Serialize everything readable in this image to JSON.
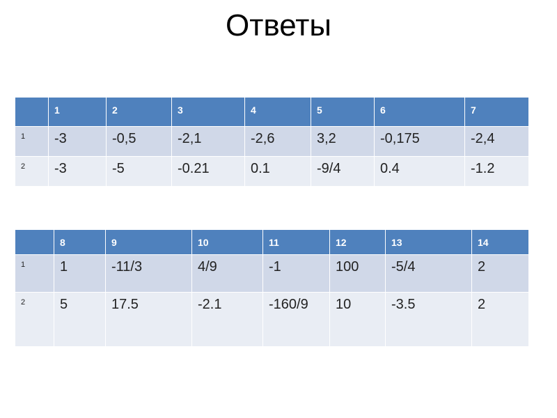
{
  "title": "Ответы",
  "tables": [
    {
      "header": [
        "1",
        "2",
        "3",
        "4",
        "5",
        "6",
        "7"
      ],
      "rows": [
        {
          "label": "1",
          "cells": [
            "-3",
            "-0,5",
            "-2,1",
            "-2,6",
            "3,2",
            "-0,175",
            "-2,4"
          ]
        },
        {
          "label": "2",
          "cells": [
            "-3",
            "-5",
            "-0.21",
            "0.1",
            "-9/4",
            "0.4",
            "-1.2"
          ]
        }
      ]
    },
    {
      "header": [
        "8",
        "9",
        "10",
        "11",
        "12",
        "13",
        "14"
      ],
      "rows": [
        {
          "label": "1",
          "cells": [
            "1",
            "-11/3",
            "4/9",
            "-1",
            "100",
            "-5/4",
            "2"
          ]
        },
        {
          "label": "2",
          "cells": [
            "5",
            "17.5",
            "-2.1",
            "-160/9",
            "10",
            "-3.5",
            "2"
          ]
        }
      ]
    }
  ]
}
